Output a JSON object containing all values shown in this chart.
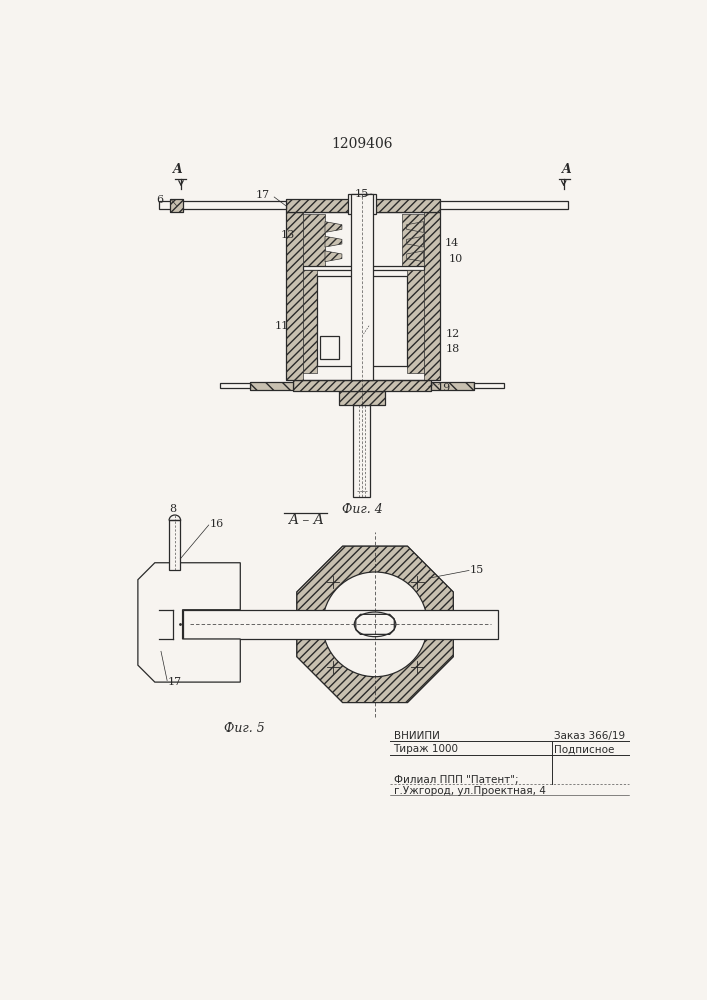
{
  "patent_number": "1209406",
  "fig4_label": "Фиг. 4",
  "fig5_label": "Фиг. 5",
  "bg_color": "#f7f4f0",
  "line_color": "#2a2a2a",
  "footer": {
    "line1_left": "ВНИИПИ",
    "line1_right": "Заказ 366/19",
    "line2_left": "Тираж 1000",
    "line2_right": "Подписное",
    "line3": "Филиал ППП \"Патент\";",
    "line4": "г.Ужгород, ул.Проектная, 4"
  }
}
